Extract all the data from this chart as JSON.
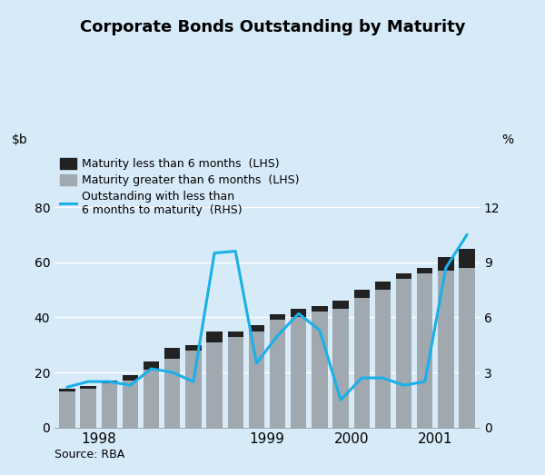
{
  "title": "Corporate Bonds Outstanding by Maturity",
  "source": "Source: RBA",
  "background_color": "#d6eaf8",
  "ylim_left": [
    0,
    100
  ],
  "ylim_right": [
    0,
    15
  ],
  "yticks_left": [
    0,
    20,
    40,
    60,
    80
  ],
  "yticks_right": [
    0,
    3,
    6,
    9,
    12
  ],
  "x_numeric": [
    0,
    1,
    2,
    3,
    4,
    5,
    6,
    7,
    8,
    9,
    10,
    11,
    12,
    13,
    14,
    15,
    16,
    17,
    18,
    19
  ],
  "bar_gray": [
    13,
    14,
    16,
    17,
    21,
    25,
    28,
    31,
    33,
    35,
    39,
    40,
    42,
    43,
    47,
    50,
    54,
    56,
    57,
    58
  ],
  "bar_black": [
    1,
    1,
    1,
    2,
    3,
    4,
    2,
    4,
    2,
    2,
    2,
    3,
    2,
    3,
    3,
    3,
    2,
    2,
    5,
    7
  ],
  "line_values": [
    2.2,
    2.5,
    2.5,
    2.3,
    3.2,
    3.0,
    2.5,
    9.5,
    9.6,
    3.5,
    5.0,
    6.2,
    5.3,
    1.5,
    2.7,
    2.7,
    2.3,
    2.5,
    8.7,
    10.5
  ],
  "bar_gray_color": "#a0a8b0",
  "bar_black_color": "#222222",
  "line_color": "#1ab0e8",
  "line_width": 2.2,
  "x_tick_positions": [
    1.5,
    5.5,
    9.5,
    13.5,
    17.5
  ],
  "x_tick_labels": [
    "1998",
    "",
    "1999",
    "2000",
    "2001"
  ],
  "grid_color": "#ffffff",
  "legend_label_black": "Maturity less than 6 months  (LHS)",
  "legend_label_gray": "Maturity greater than 6 months  (LHS)",
  "legend_label_line": "Outstanding with less than\n6 months to maturity  (RHS)"
}
